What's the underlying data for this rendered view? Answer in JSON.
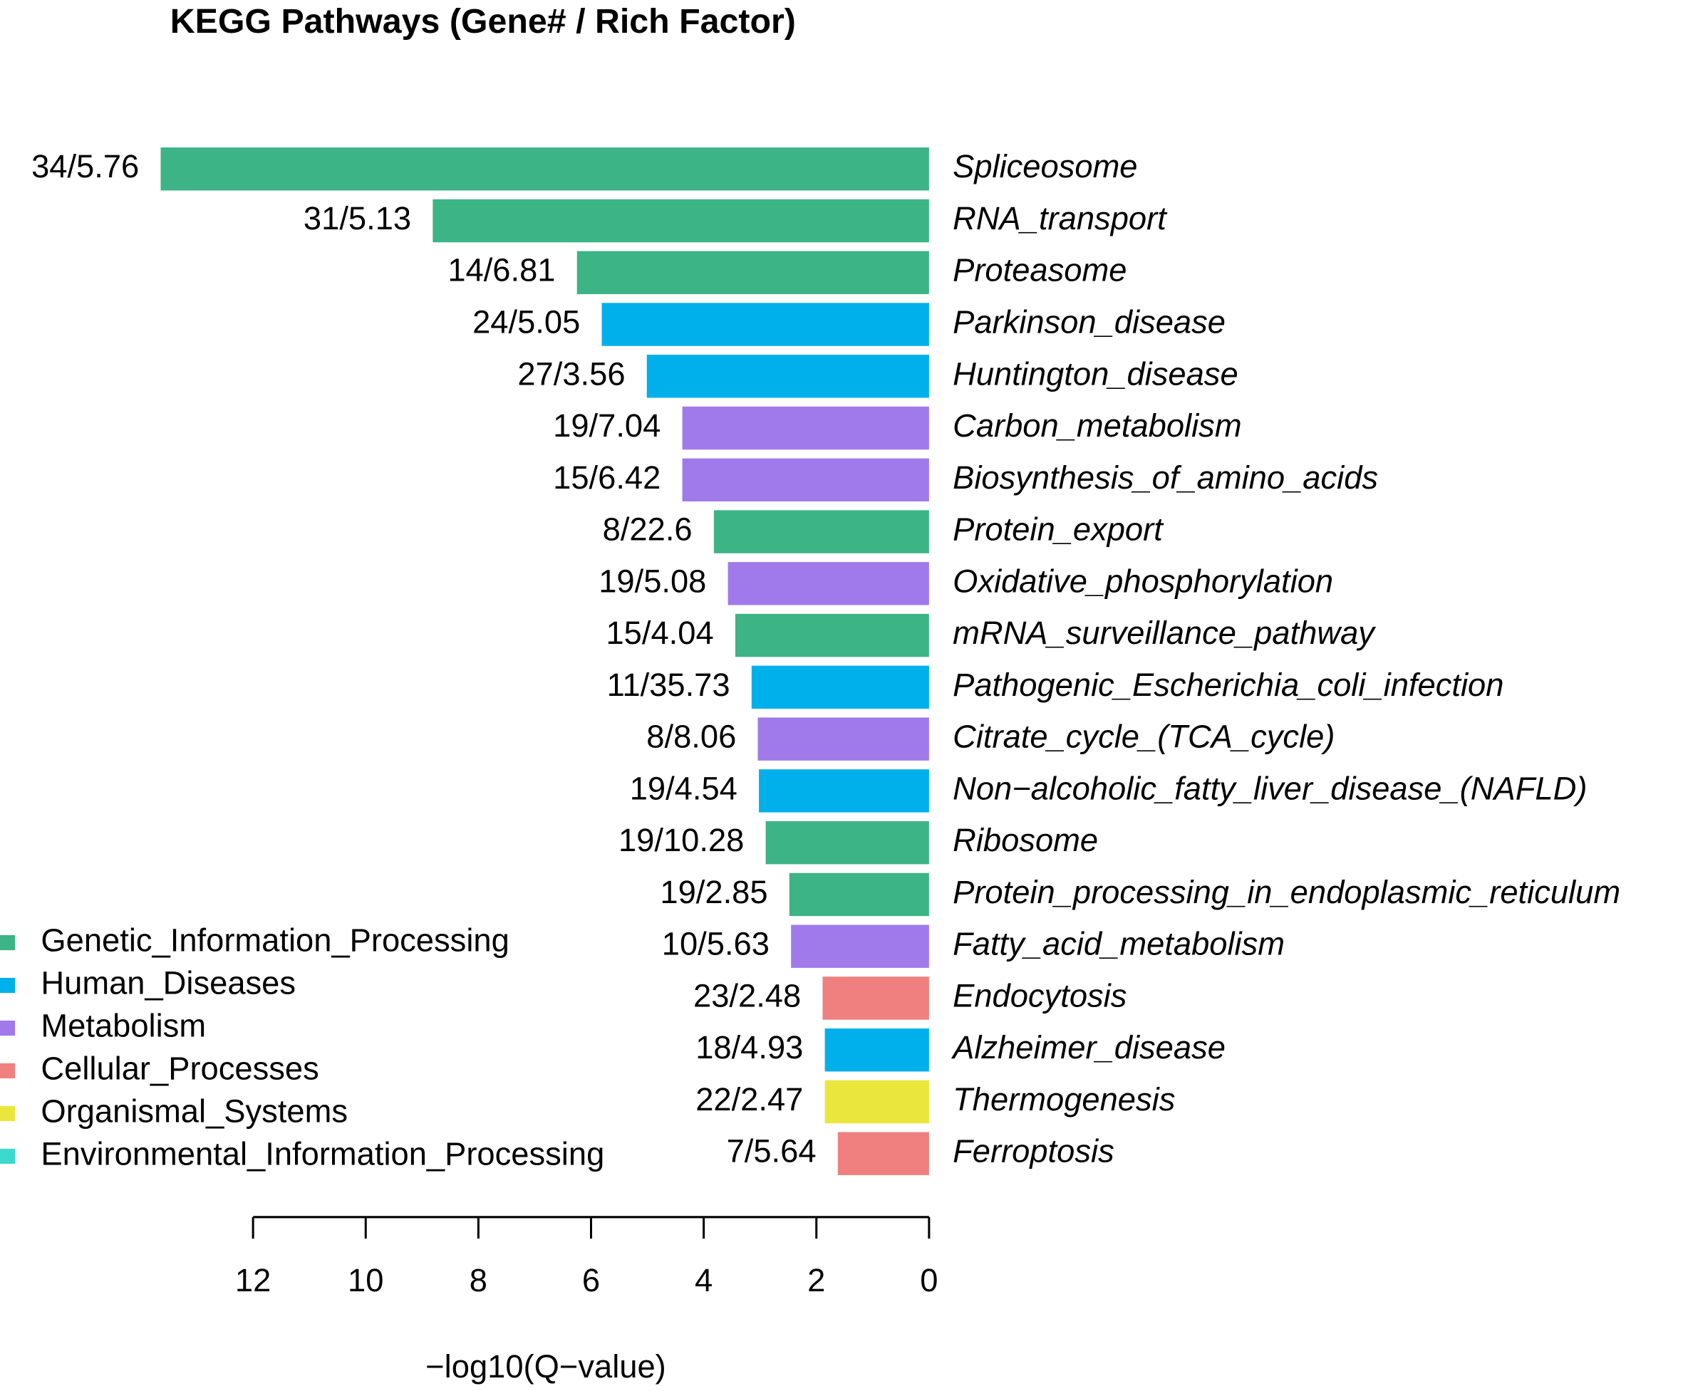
{
  "chart_data": {
    "type": "barh",
    "title": "KEGG Pathways (Gene# / Rich Factor)",
    "x_label": "−log10(Q−value)",
    "categories": [
      "Spliceosome",
      "RNA_transport",
      "Proteasome",
      "Parkinson_disease",
      "Huntington_disease",
      "Carbon_metabolism",
      "Biosynthesis_of_amino_acids",
      "Protein_export",
      "Oxidative_phosphorylation",
      "mRNA_surveillance_pathway",
      "Pathogenic_Escherichia_coli_infection",
      "Citrate_cycle_(TCA_cycle)",
      "Non−alcoholic_fatty_liver_disease_(NAFLD)",
      "Ribosome",
      "Protein_processing_in_endoplasmic_reticulum",
      "Fatty_acid_metabolism",
      "Endocytosis",
      "Alzheimer_disease",
      "Thermogenesis",
      "Ferroptosis"
    ],
    "values": [
      13.64,
      8.81,
      6.25,
      5.81,
      5.01,
      4.38,
      4.38,
      3.82,
      3.57,
      3.44,
      3.15,
      3.04,
      3.02,
      2.9,
      2.48,
      2.45,
      1.89,
      1.85,
      1.85,
      1.62
    ],
    "bar_annotations": [
      "34/5.76",
      "31/5.13",
      "14/6.81",
      "24/5.05",
      "27/3.56",
      "19/7.04",
      "15/6.42",
      "8/22.6",
      "19/5.08",
      "15/4.04",
      "11/35.73",
      "8/8.06",
      "19/4.54",
      "19/10.28",
      "19/2.85",
      "10/5.63",
      "23/2.48",
      "18/4.93",
      "22/2.47",
      "7/5.64"
    ],
    "colors": [
      "#3cb486",
      "#3cb486",
      "#3cb486",
      "#00b0eb",
      "#00b0eb",
      "#a07aeb",
      "#a07aeb",
      "#3cb486",
      "#a07aeb",
      "#3cb486",
      "#00b0eb",
      "#a07aeb",
      "#00b0eb",
      "#3cb486",
      "#3cb486",
      "#a07aeb",
      "#f08080",
      "#00b0eb",
      "#ebe63c",
      "#f08080"
    ],
    "legend_entries": [
      {
        "name": "Genetic_Information_Processing",
        "color": "#3cb486"
      },
      {
        "name": "Human_Diseases",
        "color": "#00b0eb"
      },
      {
        "name": "Metabolism",
        "color": "#a07aeb"
      },
      {
        "name": "Cellular_Processes",
        "color": "#f08080"
      },
      {
        "name": "Organismal_Systems",
        "color": "#ebe63c"
      },
      {
        "name": "Environmental_Information_Processing",
        "color": "#3cd9d0"
      }
    ],
    "legend_position": "left",
    "xlim": [
      0,
      14
    ],
    "xticks": [
      0,
      2,
      4,
      6,
      8,
      10,
      12
    ],
    "reversed_x": true
  }
}
